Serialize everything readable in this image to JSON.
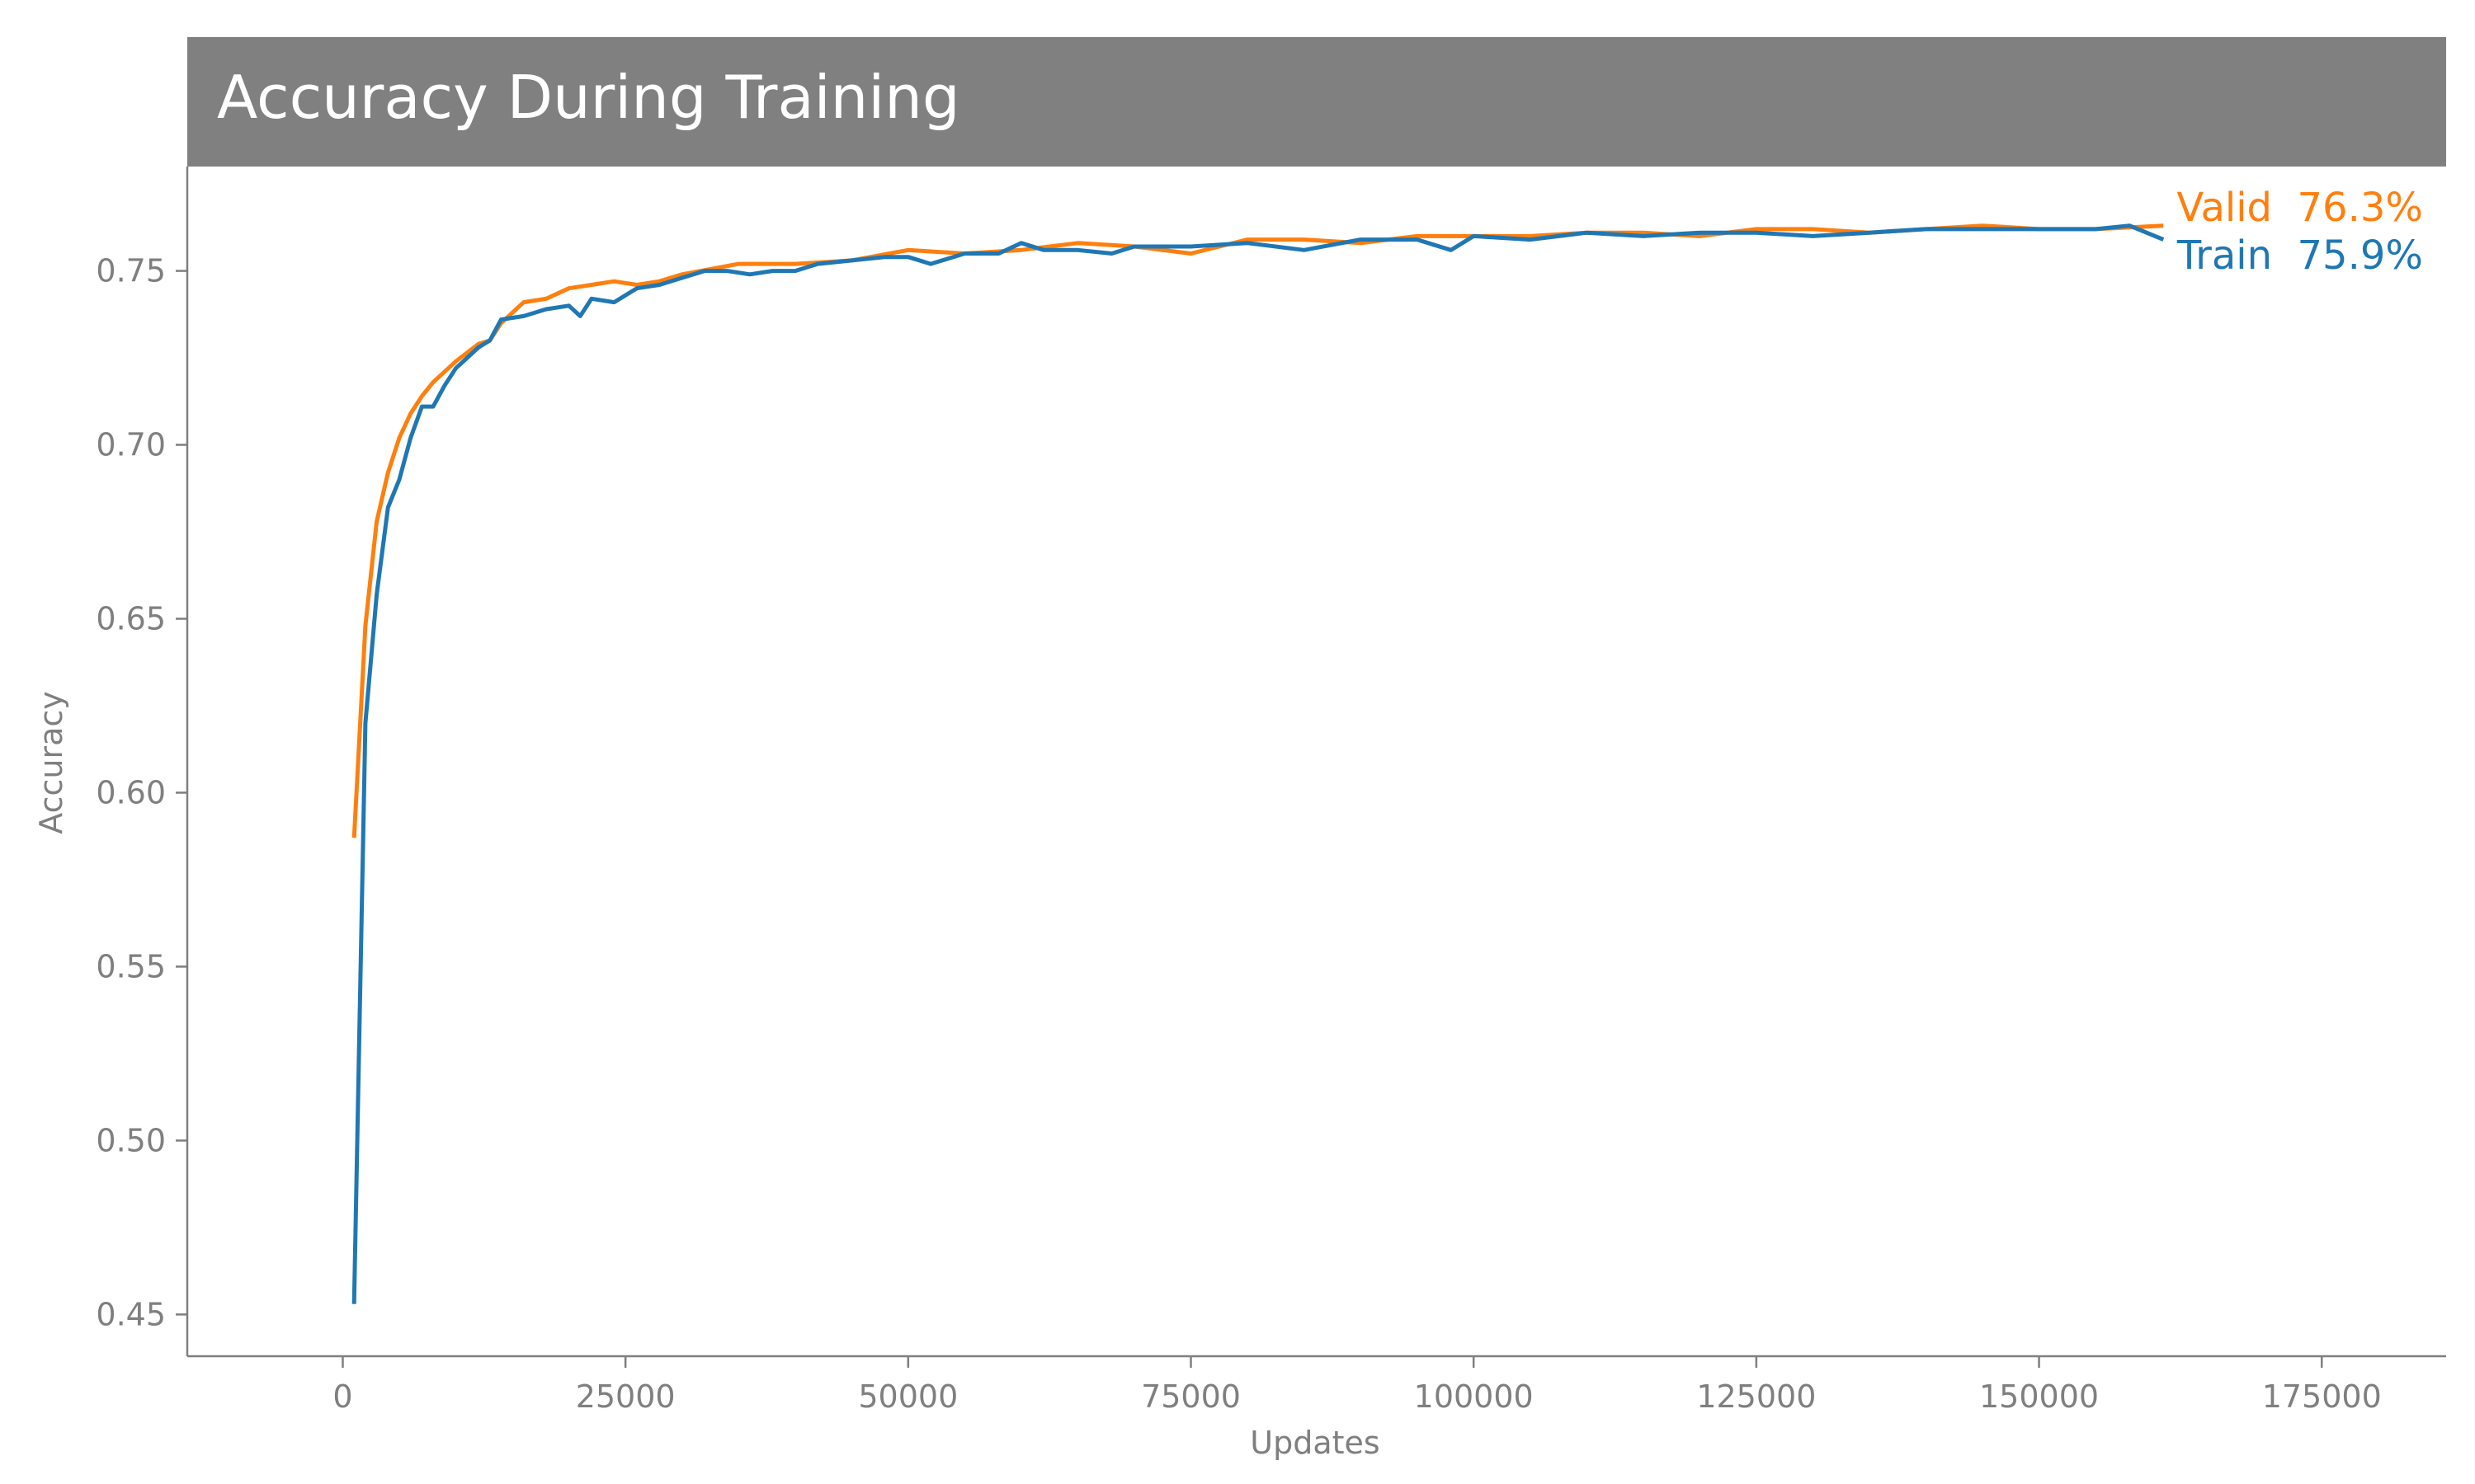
{
  "chart_data": {
    "type": "line",
    "title": "Accuracy During Training",
    "xlabel": "Updates",
    "ylabel": "Accuracy",
    "xlim": [
      -13750,
      186000
    ],
    "ylim": [
      0.438,
      0.78
    ],
    "x_ticks": [
      0,
      25000,
      50000,
      75000,
      100000,
      125000,
      150000,
      175000
    ],
    "x_tick_labels": [
      "0",
      "25000",
      "50000",
      "75000",
      "100000",
      "125000",
      "150000",
      "175000"
    ],
    "y_ticks": [
      0.45,
      0.5,
      0.55,
      0.6,
      0.65,
      0.7,
      0.75
    ],
    "y_tick_labels": [
      "0.45",
      "0.50",
      "0.55",
      "0.60",
      "0.65",
      "0.70",
      "0.75"
    ],
    "grid": false,
    "colors": {
      "title_band": "#808080",
      "axis": "#7f7f7f",
      "train": "#1f77b4",
      "valid": "#ff7f0e"
    },
    "series": [
      {
        "name": "Valid",
        "end_label": "Valid  76.3%",
        "color": "#ff7f0e",
        "x": [
          1000,
          2000,
          3000,
          4000,
          5000,
          6000,
          7000,
          8000,
          9000,
          10000,
          12000,
          13000,
          14000,
          16000,
          18000,
          20000,
          22000,
          24000,
          26000,
          28000,
          30000,
          35000,
          40000,
          45000,
          50000,
          55000,
          60000,
          65000,
          70000,
          75000,
          80000,
          85000,
          90000,
          95000,
          100000,
          105000,
          110000,
          115000,
          120000,
          125000,
          130000,
          135000,
          140000,
          145000,
          150000,
          155000,
          161000
        ],
        "values": [
          0.587,
          0.648,
          0.678,
          0.692,
          0.702,
          0.709,
          0.714,
          0.718,
          0.721,
          0.724,
          0.729,
          0.73,
          0.735,
          0.741,
          0.742,
          0.745,
          0.746,
          0.747,
          0.746,
          0.747,
          0.749,
          0.752,
          0.752,
          0.753,
          0.756,
          0.755,
          0.756,
          0.758,
          0.757,
          0.755,
          0.759,
          0.759,
          0.758,
          0.76,
          0.76,
          0.76,
          0.761,
          0.761,
          0.76,
          0.762,
          0.762,
          0.761,
          0.762,
          0.763,
          0.762,
          0.762,
          0.763
        ]
      },
      {
        "name": "Train",
        "end_label": "Train  75.9%",
        "color": "#1f77b4",
        "x": [
          1000,
          2000,
          3000,
          4000,
          5000,
          6000,
          7000,
          8000,
          9000,
          10000,
          12000,
          13000,
          14000,
          16000,
          18000,
          20000,
          21000,
          22000,
          24000,
          26000,
          28000,
          30000,
          32000,
          34000,
          36000,
          38000,
          40000,
          42000,
          45000,
          48000,
          50000,
          52000,
          55000,
          58000,
          60000,
          62000,
          65000,
          68000,
          70000,
          75000,
          80000,
          85000,
          90000,
          95000,
          98000,
          100000,
          105000,
          110000,
          115000,
          120000,
          125000,
          130000,
          135000,
          140000,
          145000,
          150000,
          155000,
          158000,
          161000
        ],
        "values": [
          0.453,
          0.62,
          0.657,
          0.682,
          0.69,
          0.702,
          0.711,
          0.711,
          0.717,
          0.722,
          0.728,
          0.73,
          0.736,
          0.737,
          0.739,
          0.74,
          0.737,
          0.742,
          0.741,
          0.745,
          0.746,
          0.748,
          0.75,
          0.75,
          0.749,
          0.75,
          0.75,
          0.752,
          0.753,
          0.754,
          0.754,
          0.752,
          0.755,
          0.755,
          0.758,
          0.756,
          0.756,
          0.755,
          0.757,
          0.757,
          0.758,
          0.756,
          0.759,
          0.759,
          0.756,
          0.76,
          0.759,
          0.761,
          0.76,
          0.761,
          0.761,
          0.76,
          0.761,
          0.762,
          0.762,
          0.762,
          0.762,
          0.763,
          0.759
        ]
      }
    ]
  }
}
